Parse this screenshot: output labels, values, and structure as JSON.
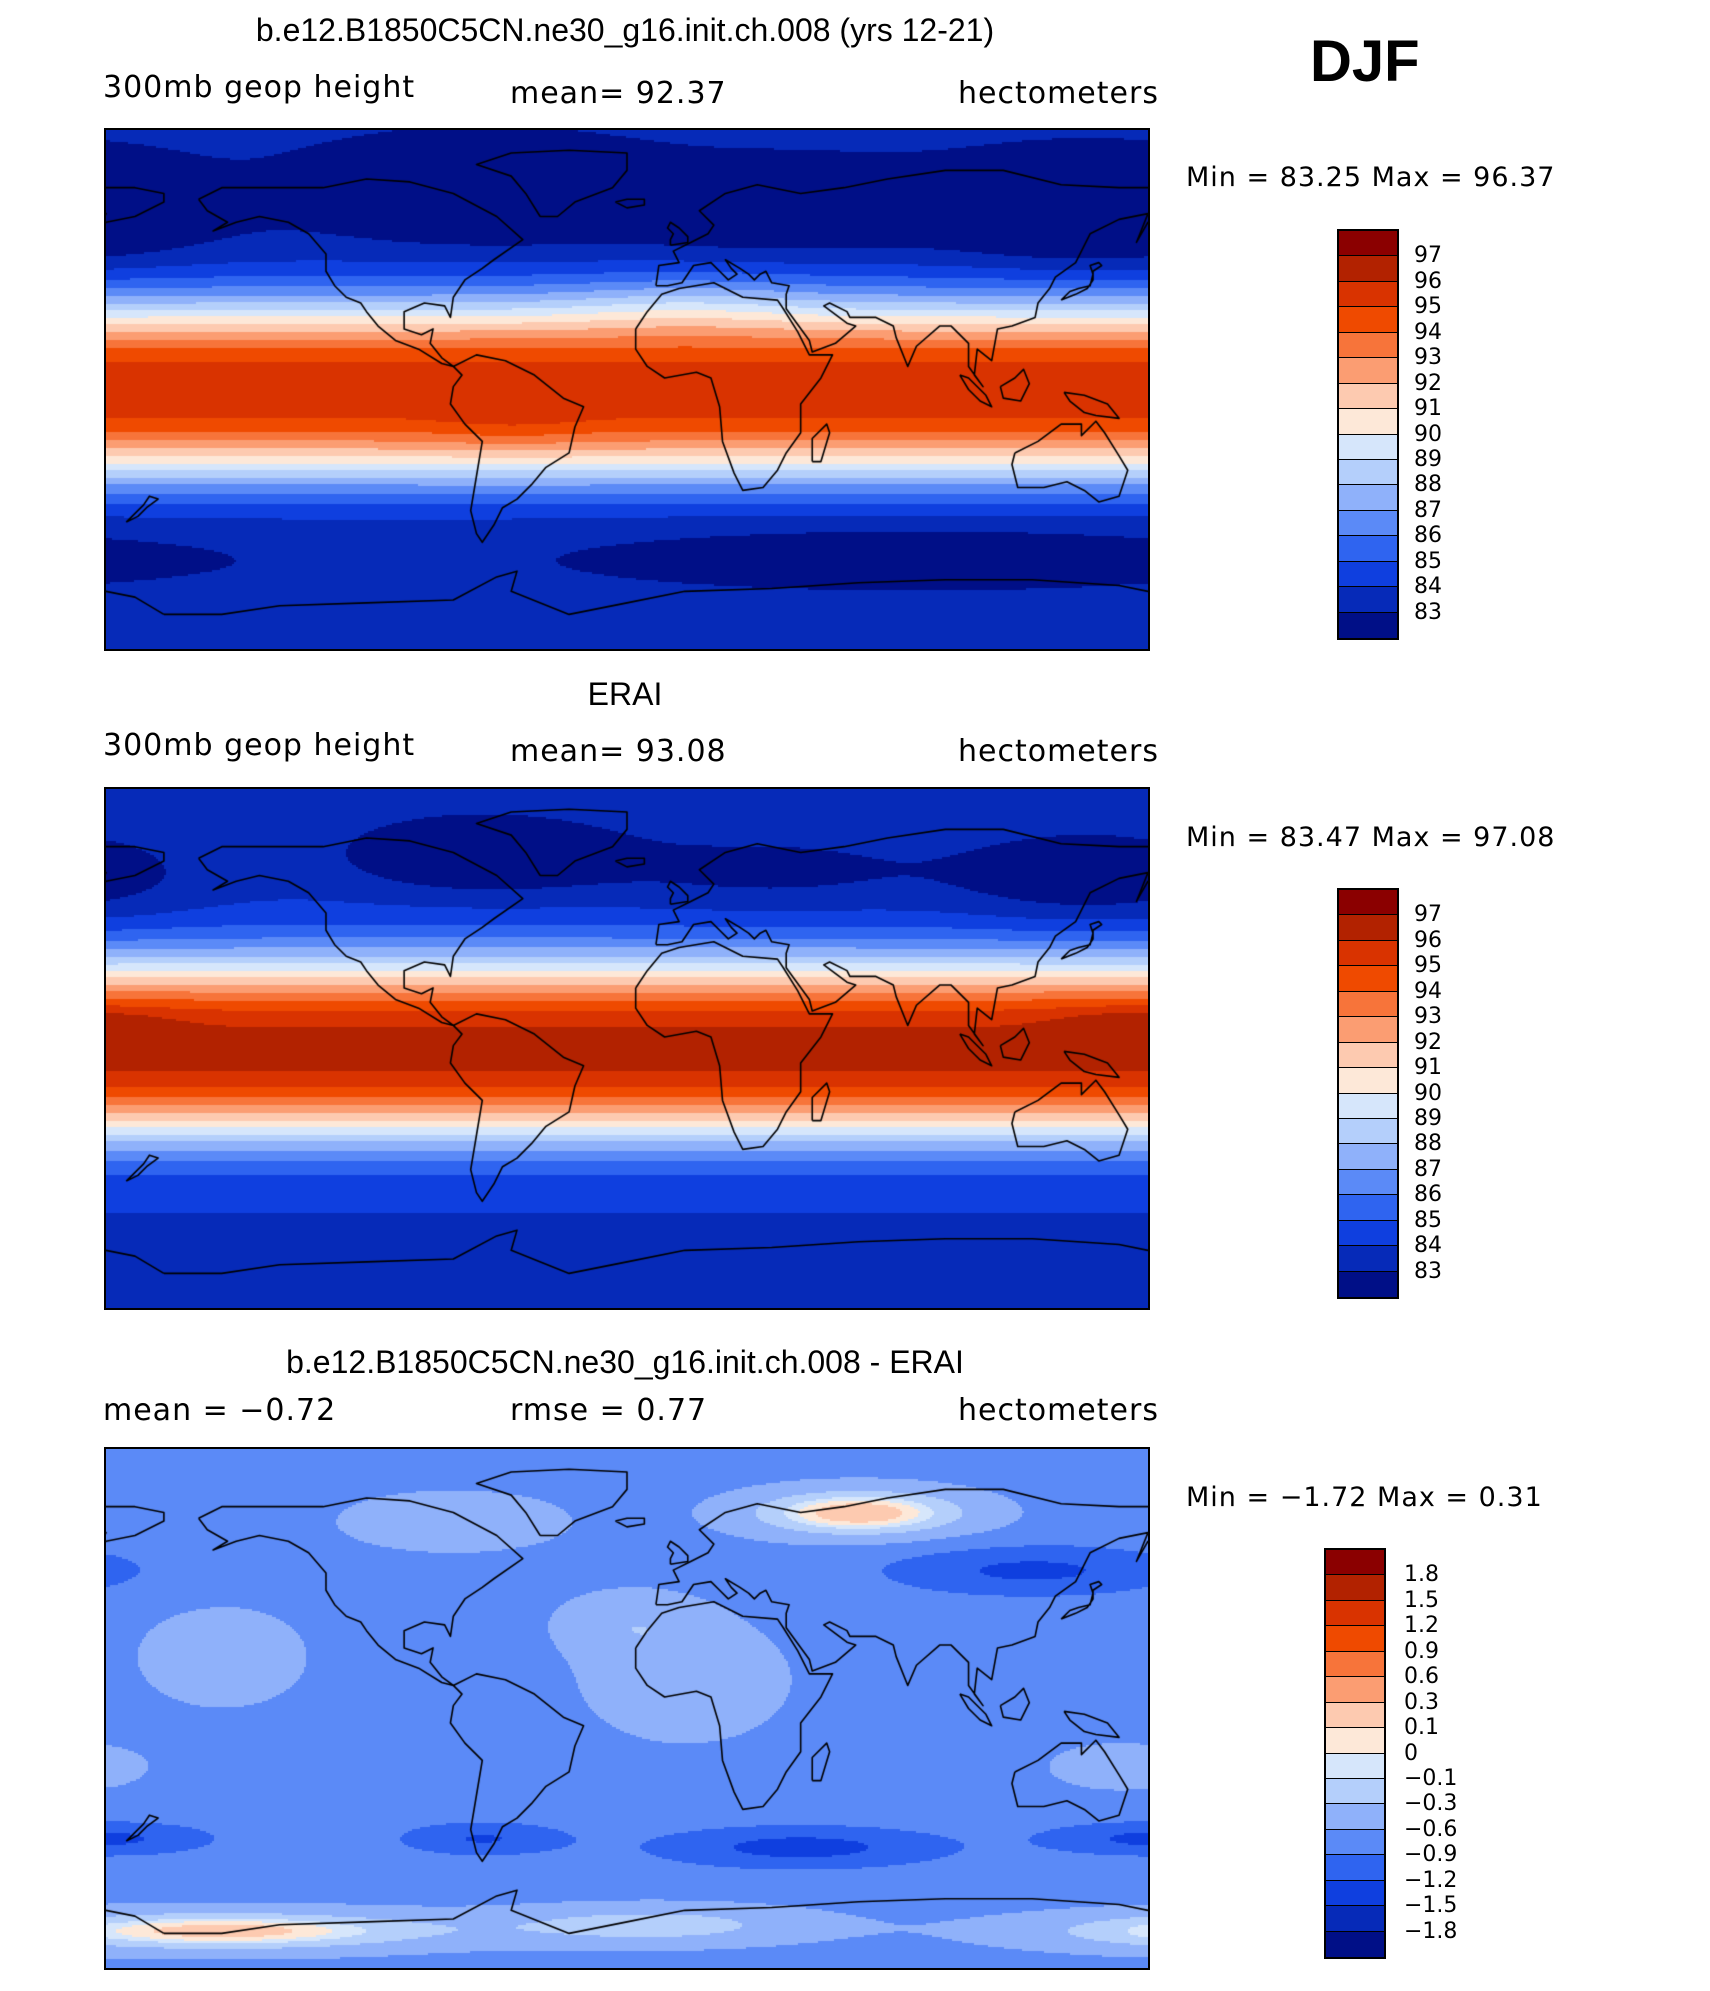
{
  "season": "DJF",
  "panels": [
    {
      "title": "b.e12.B1850C5CN.ne30_g16.init.ch.008 (yrs 12-21)",
      "left_label": "300mb  geop  height",
      "center_label": "mean=   92.37",
      "right_label": "hectometers",
      "minmax": "Min  =    83.25  Max  =    96.37",
      "field": "model",
      "legend_colors": [
        "#8b0000",
        "#b22200",
        "#d93300",
        "#ef4a00",
        "#f7743a",
        "#fb9d72",
        "#fdcab0",
        "#fde8d8",
        "#d6e6fb",
        "#b4cffb",
        "#8fb1fa",
        "#5b8af7",
        "#2f64f0",
        "#0f3fdf",
        "#062ab8",
        "#000f87"
      ],
      "legend_labels": [
        "97",
        "96",
        "95",
        "94",
        "93",
        "92",
        "91",
        "90",
        "89",
        "88",
        "87",
        "86",
        "85",
        "84",
        "83"
      ]
    },
    {
      "title": "ERAI",
      "left_label": "300mb  geop  height",
      "center_label": "mean=   93.08",
      "right_label": "hectometers",
      "minmax": "Min  =    83.47  Max  =    97.08",
      "field": "obs",
      "legend_colors": [
        "#8b0000",
        "#b22200",
        "#d93300",
        "#ef4a00",
        "#f7743a",
        "#fb9d72",
        "#fdcab0",
        "#fde8d8",
        "#d6e6fb",
        "#b4cffb",
        "#8fb1fa",
        "#5b8af7",
        "#2f64f0",
        "#0f3fdf",
        "#062ab8",
        "#000f87"
      ],
      "legend_labels": [
        "97",
        "96",
        "95",
        "94",
        "93",
        "92",
        "91",
        "90",
        "89",
        "88",
        "87",
        "86",
        "85",
        "84",
        "83"
      ]
    },
    {
      "title": "b.e12.B1850C5CN.ne30_g16.init.ch.008 - ERAI",
      "left_label": "mean  =    −0.72",
      "center_label": "rmse  =     0.77",
      "right_label": "hectometers",
      "minmax": "Min  =   −1.72  Max  =      0.31",
      "field": "diff",
      "legend_colors": [
        "#8b0000",
        "#b22200",
        "#d93300",
        "#ef4a00",
        "#f7743a",
        "#fb9d72",
        "#fdcab0",
        "#fde8d8",
        "#d6e6fb",
        "#b4cffb",
        "#8fb1fa",
        "#5b8af7",
        "#2f64f0",
        "#0f3fdf",
        "#062ab8",
        "#000f87"
      ],
      "legend_labels": [
        "1.8",
        "1.5",
        "1.2",
        "0.9",
        "0.6",
        "0.3",
        "0.1",
        "0",
        "−0.1",
        "−0.3",
        "−0.6",
        "−0.9",
        "−1.2",
        "−1.5",
        "−1.8"
      ]
    }
  ]
}
